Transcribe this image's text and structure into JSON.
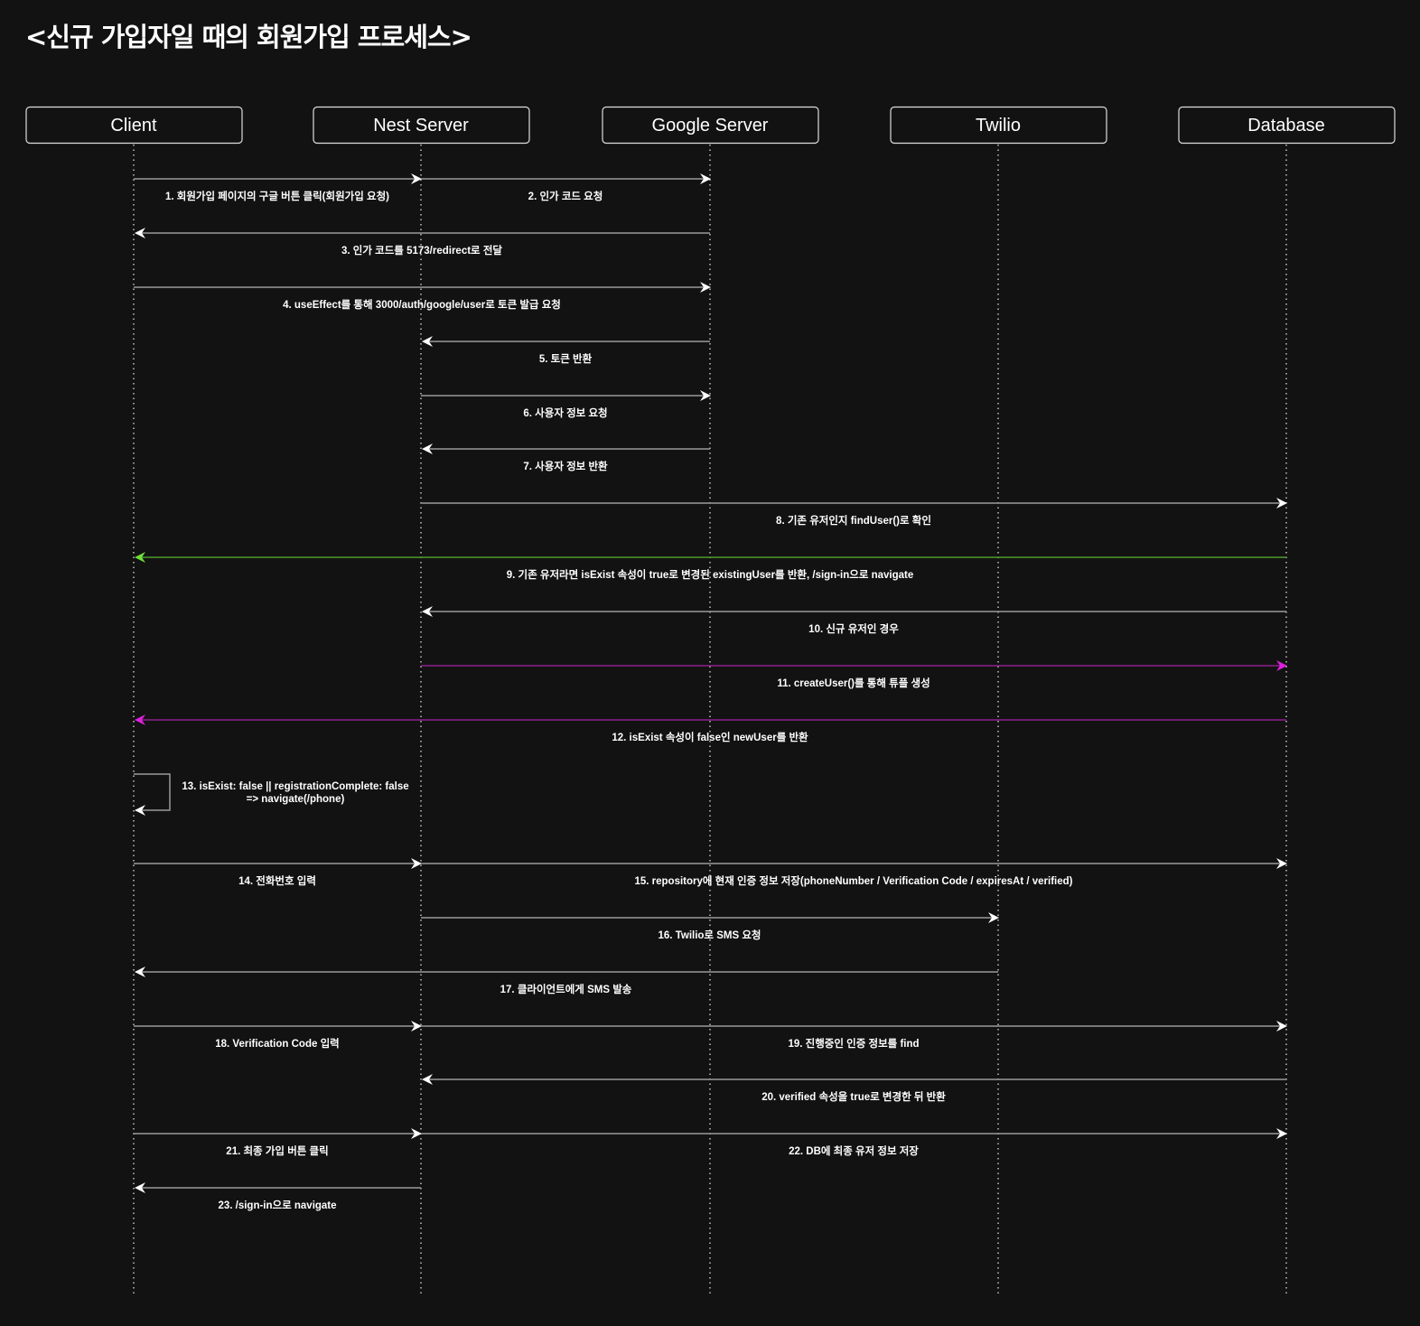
{
  "title": "<신규 가입자일 때의 회원가입 프로세스>",
  "colors": {
    "background": "#121212",
    "line": "#9a9a9a",
    "green": "#4e9a2c",
    "green_head": "#6fe03a",
    "magenta": "#8e1f8e",
    "magenta_head": "#e020e0",
    "text": "#ffffff"
  },
  "participants": [
    {
      "label": "Client"
    },
    {
      "label": "Nest Server"
    },
    {
      "label": "Google Server"
    },
    {
      "label": "Twilio"
    },
    {
      "label": "Database"
    }
  ],
  "messages": [
    {
      "label": "1. 회원가입 페이지의 구글 버튼 클릭(회원가입 요청)",
      "from": 0,
      "to": 1
    },
    {
      "label": "2. 인가 코드 요청",
      "from": 1,
      "to": 2
    },
    {
      "label": "3. 인가 코드를 5173/redirect로 전달",
      "from": 2,
      "to": 0
    },
    {
      "label": "4. useEffect를 통해 3000/auth/google/user로 토큰 발급 요청",
      "from": 0,
      "to": 2
    },
    {
      "label": "5. 토큰 반환",
      "from": 2,
      "to": 1
    },
    {
      "label": "6. 사용자 정보 요청",
      "from": 1,
      "to": 2
    },
    {
      "label": "7. 사용자 정보 반환",
      "from": 2,
      "to": 1
    },
    {
      "label": "8. 기존 유저인지 findUser()로 확인",
      "from": 1,
      "to": 4
    },
    {
      "label": "9. 기존 유저라면 isExist 속성이 true로 변경된 existingUser를 반환, /sign-in으로 navigate",
      "from": 4,
      "to": 0,
      "color": "green"
    },
    {
      "label": "10. 신규 유저인 경우",
      "from": 4,
      "to": 1
    },
    {
      "label": "11. createUser()를 통해 튜플 생성",
      "from": 1,
      "to": 4,
      "color": "magenta"
    },
    {
      "label": "12. isExist 속성이 false인 newUser를 반환",
      "from": 4,
      "to": 0,
      "color": "magenta"
    },
    {
      "label": "13. isExist: false || registrationComplete: false",
      "label2": "=> navigate(/phone)",
      "from": 0,
      "to": 0
    },
    {
      "label": "14. 전화번호 입력",
      "from": 0,
      "to": 1
    },
    {
      "label": "15. repository에 현재 인증 정보 저장(phoneNumber / Verification Code / expiresAt / verified)",
      "from": 1,
      "to": 4
    },
    {
      "label": "16. Twilio로 SMS 요청",
      "from": 1,
      "to": 3
    },
    {
      "label": "17. 클라이언트에게 SMS 발송",
      "from": 3,
      "to": 0
    },
    {
      "label": "18. Verification Code 입력",
      "from": 0,
      "to": 1
    },
    {
      "label": "19. 진행중인 인증 정보를 find",
      "from": 1,
      "to": 4
    },
    {
      "label": "20. verified 속성을 true로 변경한 뒤 반환",
      "from": 4,
      "to": 1
    },
    {
      "label": "21. 최종 가입 버튼 클릭",
      "from": 0,
      "to": 1
    },
    {
      "label": "22. DB에 최종 유저 정보 저장",
      "from": 1,
      "to": 4
    },
    {
      "label": "23. /sign-in으로 navigate",
      "from": 1,
      "to": 0
    }
  ]
}
